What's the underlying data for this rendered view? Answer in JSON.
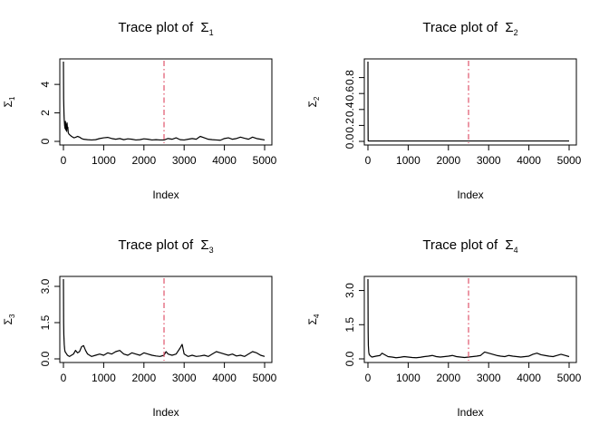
{
  "chart_data": [
    {
      "type": "line",
      "title": "Trace plot of ",
      "title_symbol": "Σ",
      "title_subscript": "1",
      "xlabel": "Index",
      "ylabel": "Σ",
      "ylabel_subscript": "1",
      "xlim": [
        0,
        5000
      ],
      "ylim": [
        0,
        5.6
      ],
      "xticks": [
        0,
        1000,
        2000,
        3000,
        4000,
        5000
      ],
      "yticks": [
        0,
        2,
        4
      ],
      "vline": {
        "x": 2500,
        "style": "dash-dot",
        "color": "#df536b"
      },
      "series": [
        {
          "color": "#000000",
          "x": [
            0,
            5,
            10,
            15,
            20,
            30,
            40,
            50,
            60,
            70,
            80,
            90,
            100,
            110,
            120,
            140,
            160,
            180,
            200,
            230,
            260,
            300,
            350,
            400,
            450,
            500,
            600,
            700,
            800,
            900,
            1000,
            1100,
            1200,
            1300,
            1400,
            1500,
            1600,
            1700,
            1800,
            1900,
            2000,
            2100,
            2200,
            2300,
            2400,
            2500,
            2600,
            2700,
            2800,
            2900,
            3000,
            3100,
            3200,
            3300,
            3400,
            3500,
            3600,
            3700,
            3800,
            3900,
            4000,
            4100,
            4200,
            4300,
            4400,
            4500,
            4600,
            4700,
            4800,
            4900,
            5000
          ],
          "y": [
            5.6,
            3.0,
            2.4,
            1.8,
            1.5,
            1.1,
            0.9,
            1.4,
            0.8,
            1.2,
            0.7,
            1.3,
            0.9,
            1.0,
            0.6,
            0.5,
            0.45,
            0.4,
            0.35,
            0.3,
            0.25,
            0.28,
            0.35,
            0.3,
            0.2,
            0.15,
            0.12,
            0.1,
            0.12,
            0.2,
            0.25,
            0.28,
            0.2,
            0.15,
            0.2,
            0.12,
            0.18,
            0.15,
            0.1,
            0.12,
            0.18,
            0.15,
            0.1,
            0.12,
            0.1,
            0.1,
            0.2,
            0.15,
            0.25,
            0.12,
            0.1,
            0.15,
            0.2,
            0.15,
            0.35,
            0.25,
            0.15,
            0.12,
            0.1,
            0.08,
            0.2,
            0.25,
            0.15,
            0.2,
            0.3,
            0.22,
            0.15,
            0.3,
            0.2,
            0.15,
            0.1
          ]
        }
      ]
    },
    {
      "type": "line",
      "title": "Trace plot of ",
      "title_symbol": "Σ",
      "title_subscript": "2",
      "xlabel": "Index",
      "ylabel": "Σ",
      "ylabel_subscript": "2",
      "xlim": [
        0,
        5000
      ],
      "ylim": [
        0,
        1.0
      ],
      "xticks": [
        0,
        1000,
        2000,
        3000,
        4000,
        5000
      ],
      "yticks": [
        0.0,
        0.2,
        0.4,
        0.6,
        0.8
      ],
      "vline": {
        "x": 2500,
        "style": "dash-dot",
        "color": "#df536b"
      },
      "series": [
        {
          "color": "#000000",
          "x": [
            0,
            2,
            5,
            10,
            50,
            100,
            500,
            1000,
            2000,
            3000,
            4000,
            5000
          ],
          "y": [
            1.0,
            0.3,
            0.01,
            0.005,
            0.005,
            0.005,
            0.005,
            0.005,
            0.005,
            0.005,
            0.005,
            0.005
          ]
        }
      ]
    },
    {
      "type": "line",
      "title": "Trace plot of ",
      "title_symbol": "Σ",
      "title_subscript": "3",
      "xlabel": "Index",
      "ylabel": "Σ",
      "ylabel_subscript": "3",
      "xlim": [
        0,
        5000
      ],
      "ylim": [
        0,
        3.3
      ],
      "xticks": [
        0,
        1000,
        2000,
        3000,
        4000,
        5000
      ],
      "yticks": [
        0.0,
        1.5,
        3.0
      ],
      "vline": {
        "x": 2500,
        "style": "dash-dot",
        "color": "#df536b"
      },
      "series": [
        {
          "color": "#000000",
          "x": [
            0,
            5,
            10,
            20,
            30,
            40,
            60,
            80,
            100,
            150,
            200,
            250,
            300,
            350,
            400,
            450,
            500,
            550,
            600,
            700,
            800,
            900,
            1000,
            1100,
            1200,
            1300,
            1400,
            1500,
            1600,
            1700,
            1800,
            1900,
            2000,
            2100,
            2200,
            2300,
            2400,
            2500,
            2550,
            2600,
            2700,
            2800,
            2900,
            2950,
            3000,
            3100,
            3200,
            3300,
            3400,
            3500,
            3600,
            3700,
            3800,
            3900,
            4000,
            4100,
            4200,
            4300,
            4400,
            4500,
            4600,
            4700,
            4800,
            4900,
            5000
          ],
          "y": [
            3.3,
            1.5,
            1.0,
            0.6,
            0.4,
            0.3,
            0.25,
            0.2,
            0.15,
            0.1,
            0.15,
            0.2,
            0.35,
            0.25,
            0.3,
            0.5,
            0.55,
            0.35,
            0.2,
            0.1,
            0.15,
            0.2,
            0.15,
            0.25,
            0.2,
            0.3,
            0.35,
            0.2,
            0.15,
            0.25,
            0.2,
            0.15,
            0.25,
            0.2,
            0.15,
            0.12,
            0.1,
            0.15,
            0.3,
            0.2,
            0.15,
            0.2,
            0.45,
            0.6,
            0.2,
            0.1,
            0.15,
            0.1,
            0.12,
            0.15,
            0.1,
            0.2,
            0.3,
            0.25,
            0.2,
            0.15,
            0.2,
            0.12,
            0.15,
            0.1,
            0.2,
            0.3,
            0.25,
            0.15,
            0.1
          ]
        }
      ]
    },
    {
      "type": "line",
      "title": "Trace plot of ",
      "title_symbol": "Σ",
      "title_subscript": "4",
      "xlabel": "Index",
      "ylabel": "Σ",
      "ylabel_subscript": "4",
      "xlim": [
        0,
        5000
      ],
      "ylim": [
        0,
        3.5
      ],
      "xticks": [
        0,
        1000,
        2000,
        3000,
        4000,
        5000
      ],
      "yticks": [
        0.0,
        1.5,
        3.0
      ],
      "vline": {
        "x": 2500,
        "style": "dash-dot",
        "color": "#df536b"
      },
      "series": [
        {
          "color": "#000000",
          "x": [
            0,
            5,
            10,
            20,
            30,
            50,
            80,
            100,
            150,
            200,
            300,
            350,
            400,
            500,
            600,
            700,
            800,
            900,
            1000,
            1100,
            1200,
            1300,
            1400,
            1500,
            1600,
            1700,
            1800,
            1900,
            2000,
            2100,
            2200,
            2300,
            2400,
            2500,
            2600,
            2700,
            2800,
            2900,
            3000,
            3100,
            3200,
            3300,
            3400,
            3500,
            3600,
            3700,
            3800,
            3900,
            4000,
            4100,
            4200,
            4300,
            4400,
            4500,
            4600,
            4700,
            4800,
            4900,
            5000
          ],
          "y": [
            3.5,
            1.2,
            0.6,
            0.3,
            0.2,
            0.15,
            0.1,
            0.08,
            0.1,
            0.12,
            0.15,
            0.25,
            0.2,
            0.1,
            0.08,
            0.05,
            0.07,
            0.1,
            0.08,
            0.06,
            0.05,
            0.07,
            0.1,
            0.12,
            0.15,
            0.1,
            0.08,
            0.1,
            0.12,
            0.15,
            0.1,
            0.08,
            0.06,
            0.08,
            0.1,
            0.12,
            0.15,
            0.3,
            0.25,
            0.2,
            0.15,
            0.12,
            0.1,
            0.15,
            0.12,
            0.1,
            0.08,
            0.1,
            0.12,
            0.2,
            0.25,
            0.18,
            0.15,
            0.12,
            0.1,
            0.15,
            0.2,
            0.15,
            0.1
          ]
        }
      ]
    }
  ]
}
